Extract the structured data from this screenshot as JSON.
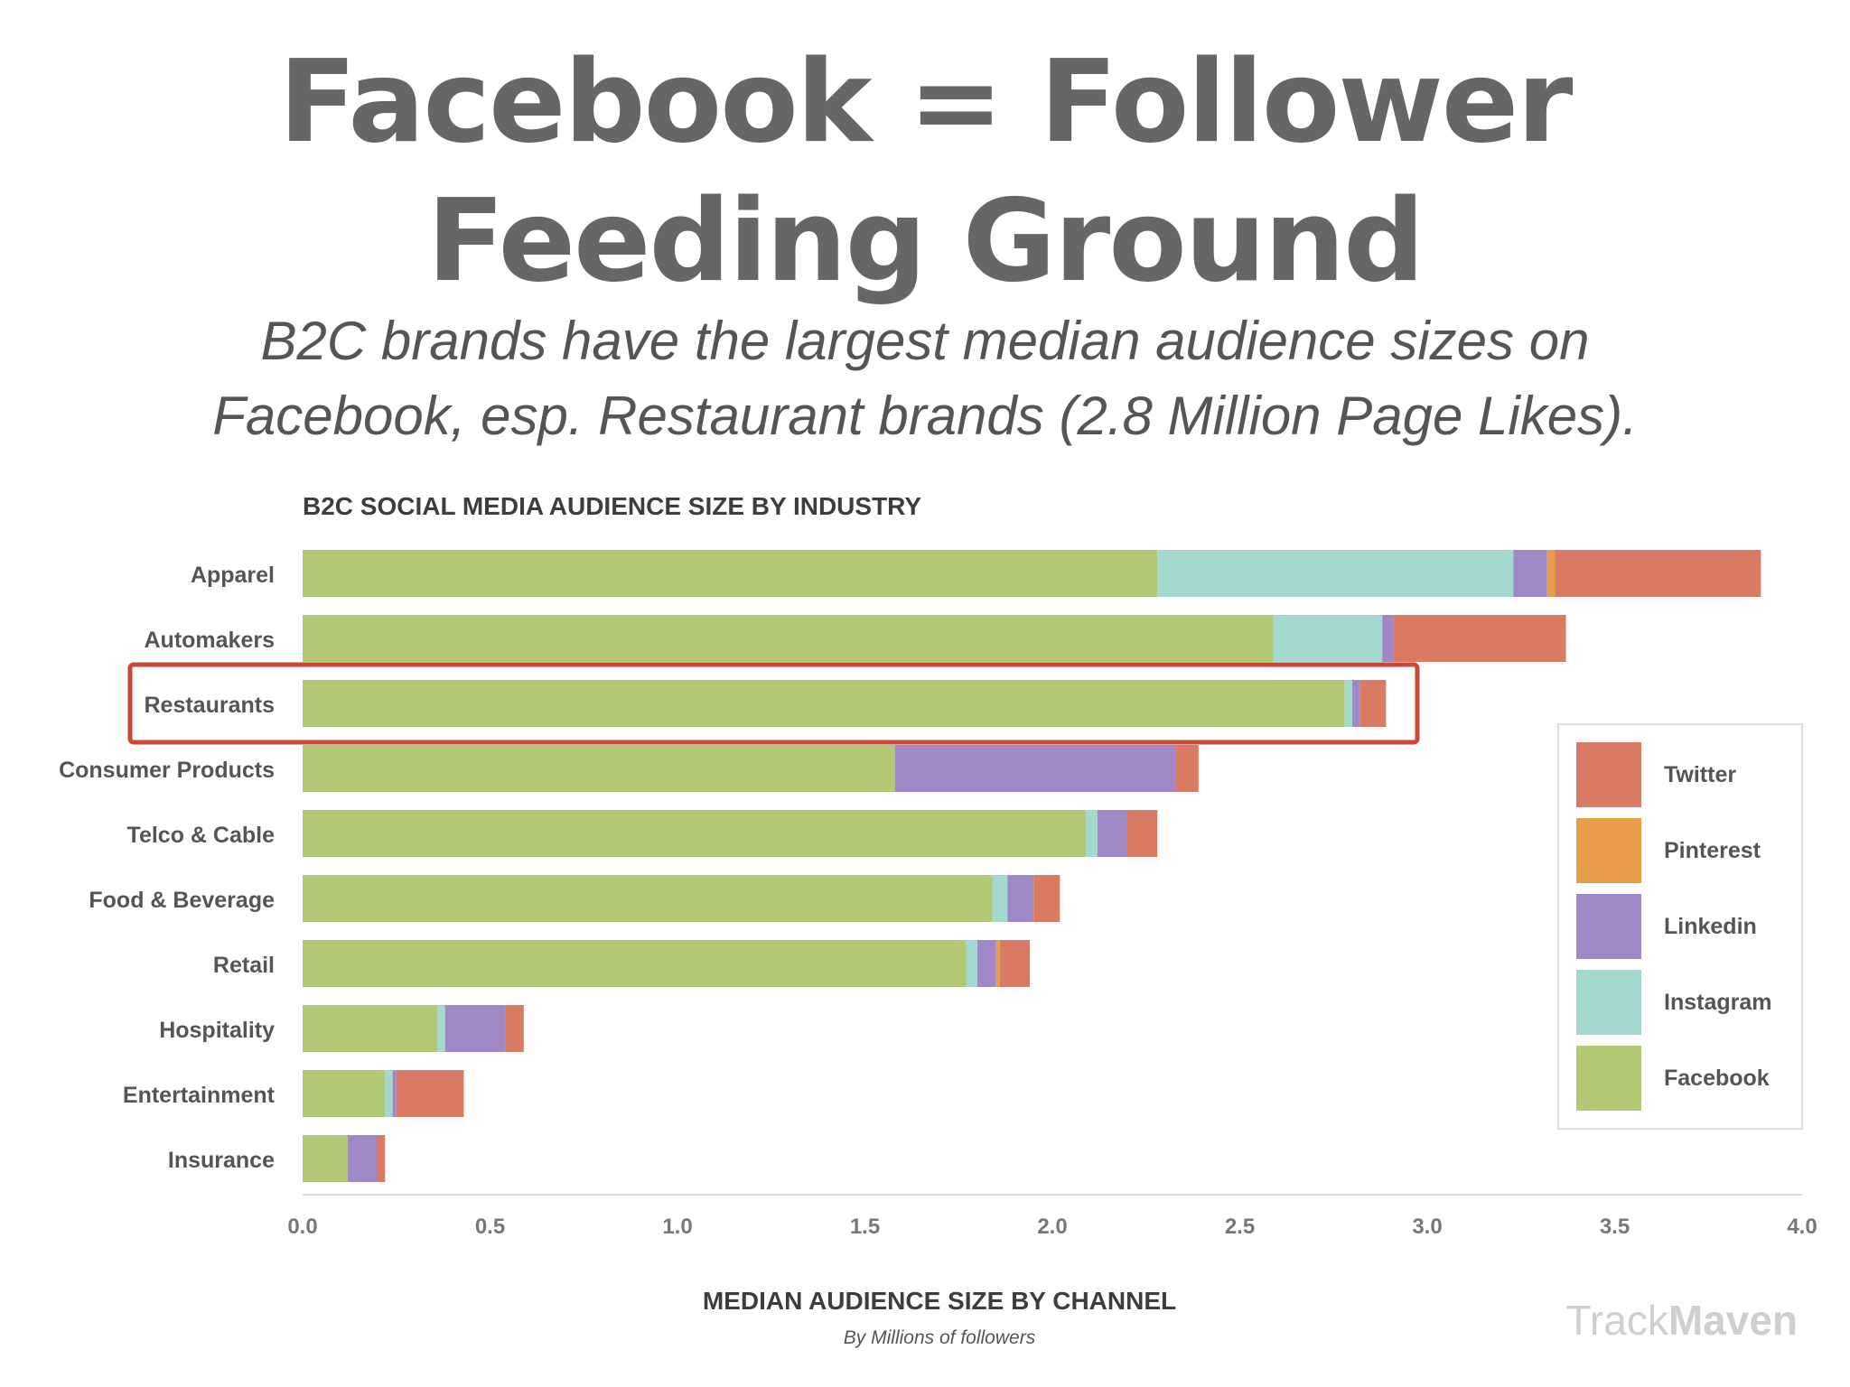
{
  "slide": {
    "title_line1": "Facebook = Follower",
    "title_line2": "Feeding Ground",
    "subtitle_line1": "B2C brands have the largest median audience sizes on",
    "subtitle_line2": "Facebook, esp. Restaurant brands (2.8 Million Page Likes)."
  },
  "chart_data": {
    "type": "bar",
    "orientation": "horizontal",
    "stacked": true,
    "title": "B2C SOCIAL MEDIA AUDIENCE SIZE BY INDUSTRY",
    "xlabel": "MEDIAN AUDIENCE SIZE BY CHANNEL",
    "xlabel_sub": "By Millions of followers",
    "ylabel": "",
    "xlim": [
      0,
      4
    ],
    "xticks": [
      "0.0",
      "0.5",
      "1.0",
      "1.5",
      "2.0",
      "2.5",
      "3.0",
      "3.5",
      "4.0"
    ],
    "grid": false,
    "legend_position": "right",
    "categories": [
      "Apparel",
      "Automakers",
      "Restaurants",
      "Consumer Products",
      "Telco & Cable",
      "Food & Beverage",
      "Retail",
      "Hospitality",
      "Entertainment",
      "Insurance"
    ],
    "highlight_category": "Restaurants",
    "series": [
      {
        "name": "Facebook",
        "color": "#b2c874",
        "values": [
          2.28,
          2.59,
          2.78,
          1.58,
          2.09,
          1.84,
          1.77,
          0.36,
          0.22,
          0.12
        ]
      },
      {
        "name": "Instagram",
        "color": "#a4d9d0",
        "values": [
          0.95,
          0.29,
          0.02,
          0.0,
          0.03,
          0.04,
          0.03,
          0.02,
          0.02,
          0.0
        ]
      },
      {
        "name": "Linkedin",
        "color": "#a087c5",
        "values": [
          0.09,
          0.03,
          0.02,
          0.75,
          0.08,
          0.07,
          0.05,
          0.16,
          0.01,
          0.08
        ]
      },
      {
        "name": "Pinterest",
        "color": "#e89e48",
        "values": [
          0.02,
          0.0,
          0.0,
          0.0,
          0.0,
          0.0,
          0.01,
          0.0,
          0.0,
          0.0
        ]
      },
      {
        "name": "Twitter",
        "color": "#db7a62",
        "values": [
          0.55,
          0.46,
          0.07,
          0.06,
          0.08,
          0.07,
          0.08,
          0.05,
          0.18,
          0.02
        ]
      }
    ],
    "legend_order": [
      "Twitter",
      "Pinterest",
      "Linkedin",
      "Instagram",
      "Facebook"
    ],
    "highlight_color": "#c94836",
    "watermark": {
      "part1": "Track",
      "part2": "Maven"
    }
  }
}
